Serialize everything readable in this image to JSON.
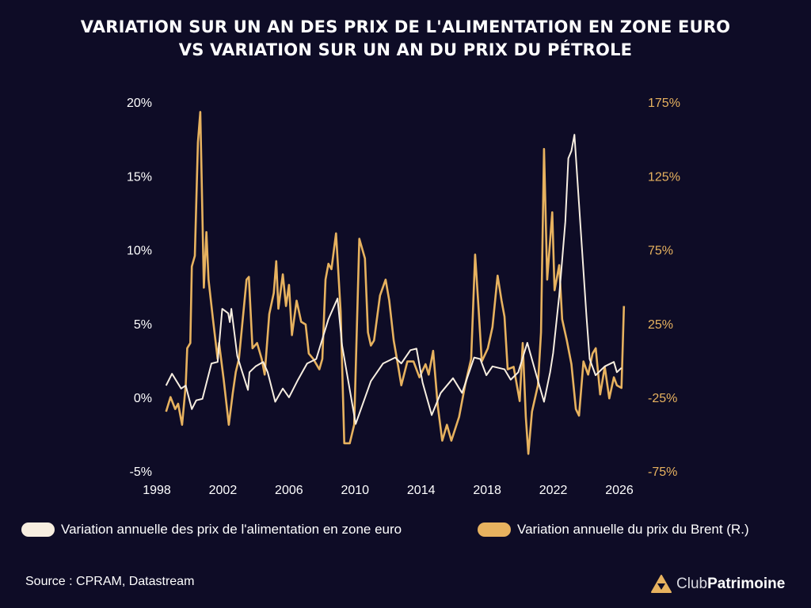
{
  "header": {
    "title_line1": "VARIATION SUR UN AN DES PRIX DE L'ALIMENTATION EN ZONE EURO",
    "title_line2": "VS VARIATION SUR UN AN DU PRIX DU PÉTROLE"
  },
  "chart_data": {
    "type": "line",
    "title": "VARIATION SUR UN AN DES PRIX DE L'ALIMENTATION EN ZONE EURO VS VARIATION SUR UN AN DU PRIX DU PÉTROLE",
    "xlim": [
      1998,
      2026
    ],
    "xticks": [
      "1998",
      "2002",
      "2006",
      "2010",
      "2014",
      "2018",
      "2022",
      "2026"
    ],
    "ylim_left": [
      -5,
      20
    ],
    "yticks_left": [
      {
        "v": 20,
        "label": "20%"
      },
      {
        "v": 15,
        "label": "15%"
      },
      {
        "v": 10,
        "label": "10%"
      },
      {
        "v": 5,
        "label": "5%"
      },
      {
        "v": 0,
        "label": "0%"
      },
      {
        "v": -5,
        "label": "-5%"
      }
    ],
    "ylim_right": [
      -75,
      175
    ],
    "yticks_right": [
      {
        "v": 175,
        "label": "175%"
      },
      {
        "v": 125,
        "label": "125%"
      },
      {
        "v": 75,
        "label": "75%"
      },
      {
        "v": 25,
        "label": "25%"
      },
      {
        "v": -25,
        "label": "-25%"
      },
      {
        "v": -75,
        "label": "-75%"
      }
    ],
    "grid": false,
    "legend_placement": "bottom",
    "series": [
      {
        "name": "Variation annuelle des prix de l'alimentation en zone euro",
        "axis": "left",
        "color": "#f7eee0",
        "x": [
          1998.56,
          1998.92,
          1999.47,
          1999.75,
          2000.12,
          2000.39,
          2000.76,
          2001.31,
          2001.68,
          2001.96,
          2002.32,
          2002.42,
          2002.51,
          2002.87,
          2003.15,
          2003.52,
          2003.61,
          2003.98,
          2004.44,
          2004.71,
          2005.17,
          2005.63,
          2006.0,
          2006.55,
          2007.1,
          2007.65,
          2008.39,
          2008.94,
          2009.22,
          2010.04,
          2010.96,
          2011.7,
          2012.43,
          2012.8,
          2013.35,
          2013.72,
          2014.09,
          2014.64,
          2015.19,
          2015.93,
          2016.48,
          2017.21,
          2017.58,
          2017.95,
          2018.32,
          2019.05,
          2019.42,
          2019.88,
          2020.43,
          2020.98,
          2021.44,
          2021.81,
          2021.99,
          2022.36,
          2022.73,
          2022.91,
          2023.1,
          2023.28,
          2023.46,
          2024.01,
          2024.2,
          2024.56,
          2025.12,
          2025.67,
          2025.85,
          2026.13
        ],
        "y": [
          0.9,
          1.7,
          0.7,
          0.9,
          -0.7,
          -0.1,
          0.0,
          2.4,
          2.5,
          6.1,
          5.8,
          5.2,
          6.1,
          2.9,
          1.9,
          0.6,
          1.8,
          2.2,
          2.5,
          1.8,
          -0.2,
          0.7,
          0.1,
          1.3,
          2.4,
          2.7,
          5.4,
          6.8,
          3.6,
          -1.7,
          1.2,
          2.4,
          2.8,
          2.4,
          3.3,
          3.4,
          1.1,
          -1.1,
          0.4,
          1.4,
          0.4,
          2.8,
          2.7,
          1.6,
          2.2,
          2.0,
          1.3,
          1.8,
          3.8,
          1.6,
          -0.2,
          1.8,
          3.1,
          7.0,
          12.0,
          16.3,
          16.8,
          17.9,
          14.9,
          5.6,
          2.7,
          1.6,
          2.2,
          2.5,
          1.8,
          2.1
        ]
      },
      {
        "name": "Variation annuelle du prix du Brent (R.)",
        "axis": "right",
        "color": "#e7b25f",
        "x": [
          1998.56,
          1998.83,
          1999.11,
          1999.29,
          1999.53,
          1999.75,
          1999.84,
          2000.03,
          2000.12,
          2000.3,
          2000.49,
          2000.63,
          2000.71,
          2000.85,
          2001.0,
          2001.13,
          2001.4,
          2001.68,
          2001.77,
          2002.05,
          2002.36,
          2002.6,
          2002.78,
          2002.97,
          2003.43,
          2003.57,
          2003.79,
          2004.07,
          2004.35,
          2004.53,
          2004.81,
          2005.08,
          2005.23,
          2005.36,
          2005.63,
          2005.82,
          2006.0,
          2006.18,
          2006.46,
          2006.74,
          2007.01,
          2007.2,
          2007.47,
          2007.84,
          2008.02,
          2008.21,
          2008.39,
          2008.57,
          2008.85,
          2009.13,
          2009.35,
          2009.68,
          2009.95,
          2010.26,
          2010.6,
          2010.78,
          2010.96,
          2011.15,
          2011.51,
          2011.85,
          2012.07,
          2012.34,
          2012.62,
          2012.8,
          2013.17,
          2013.54,
          2013.9,
          2014.27,
          2014.46,
          2014.73,
          2015.01,
          2015.28,
          2015.56,
          2015.83,
          2016.3,
          2016.66,
          2017.03,
          2017.27,
          2017.49,
          2017.67,
          2018.04,
          2018.32,
          2018.63,
          2018.87,
          2019.05,
          2019.24,
          2019.6,
          2019.97,
          2020.15,
          2020.34,
          2020.49,
          2020.71,
          2021.07,
          2021.26,
          2021.44,
          2021.63,
          2021.94,
          2022.08,
          2022.36,
          2022.54,
          2022.82,
          2023.1,
          2023.37,
          2023.56,
          2023.83,
          2024.11,
          2024.38,
          2024.57,
          2024.84,
          2025.12,
          2025.39,
          2025.67,
          2025.85,
          2026.13,
          2026.28
        ],
        "y": [
          -33.7,
          -23.8,
          -31.9,
          -28.3,
          -42.6,
          -15.8,
          9.3,
          12.8,
          64.7,
          71.9,
          148.8,
          169.4,
          127.3,
          50.4,
          88.0,
          55.8,
          28.9,
          2.1,
          12.8,
          -12.2,
          -42.6,
          -21.1,
          -6.8,
          2.1,
          55.8,
          57.6,
          9.3,
          12.8,
          2.1,
          -8.6,
          32.5,
          46.8,
          68.3,
          36.1,
          59.4,
          37.9,
          52.2,
          18.2,
          41.5,
          27.2,
          25.4,
          5.7,
          2.1,
          -5.0,
          2.1,
          55.8,
          66.5,
          62.9,
          87.1,
          34.3,
          -55.1,
          -55.1,
          -42.6,
          83.5,
          70.1,
          20.0,
          11.1,
          14.6,
          45.0,
          55.8,
          41.5,
          14.6,
          -3.3,
          -15.8,
          0.3,
          0.3,
          -10.4,
          -1.5,
          -8.6,
          7.5,
          -30.1,
          -53.3,
          -42.6,
          -53.3,
          -37.2,
          -15.8,
          2.1,
          72.8,
          34.3,
          0.3,
          9.3,
          23.6,
          58.5,
          41.5,
          30.7,
          -5.0,
          -3.3,
          -26.5,
          12.8,
          -37.2,
          -62.3,
          -33.7,
          -15.8,
          20.0,
          144.3,
          55.8,
          101.4,
          48.6,
          65.6,
          28.9,
          14.6,
          -1.5,
          -31.9,
          -36.4,
          0.3,
          -8.6,
          5.7,
          9.3,
          -22.0,
          -3.3,
          -24.7,
          -10.4,
          -15.8,
          -17.6,
          37.9
        ]
      }
    ]
  },
  "legend": {
    "items": [
      {
        "label": "Variation annuelle des prix de l'alimentation en zone euro",
        "color": "#f7eee0"
      },
      {
        "label": "Variation annuelle du prix du Brent (R.)",
        "color": "#e7b25f"
      }
    ]
  },
  "footer": {
    "source": "Source : CPRAM, Datastream",
    "logo_text_light": "Club",
    "logo_text_bold": "Patrimoine",
    "logo_icon": "triangle-logo-icon"
  }
}
